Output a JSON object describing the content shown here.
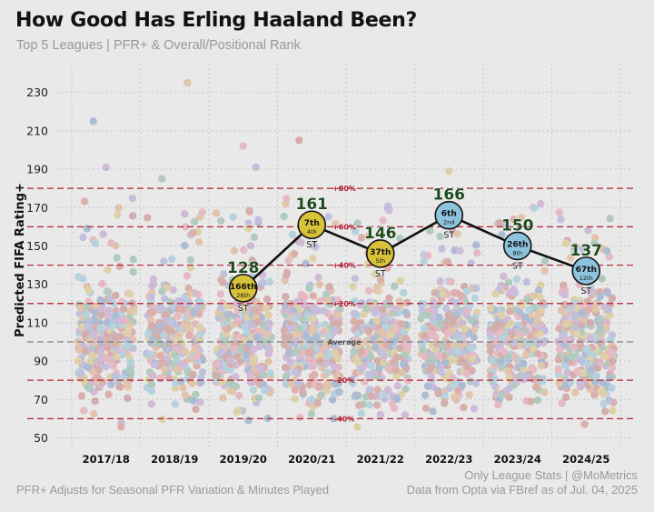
{
  "header": {
    "title": "How Good Has Erling Haaland Been?",
    "subtitle": "Top 5 Leagues | PFR+ & Overall/Positional Rank"
  },
  "footer": {
    "note": "PFR+ Adjusts for Seasonal PFR Variation & Minutes Played",
    "credit": "Only League Stats | @MoMetrics",
    "source": "Data from Opta via FBref as of Jul. 04, 2025"
  },
  "colors": {
    "background": "#e9e9e9",
    "reference_line": "#b22234",
    "average_line": "#777777",
    "player_line": "#111111",
    "label_green": "#1f4a1f",
    "gold_marker": "#d8c23a",
    "blue_marker": "#8ec3de"
  },
  "chart_data": {
    "type": "scatter",
    "title": "How Good Has Erling Haaland Been?",
    "xlabel": "",
    "ylabel": "Predicted FIFA Rating+",
    "categories": [
      "2017/18",
      "2018/19",
      "2019/20",
      "2020/21",
      "2021/22",
      "2022/23",
      "2023/24",
      "2024/25"
    ],
    "ylim": [
      45,
      245
    ],
    "yticks": [
      50,
      70,
      90,
      110,
      130,
      150,
      170,
      190,
      210,
      230
    ],
    "grid": true,
    "reference_lines": [
      {
        "value": 180,
        "label": "+80%"
      },
      {
        "value": 160,
        "label": "+60%"
      },
      {
        "value": 140,
        "label": "+40%"
      },
      {
        "value": 120,
        "label": "+20%"
      },
      {
        "value": 100,
        "label": "Average"
      },
      {
        "value": 80,
        "label": "-20%"
      },
      {
        "value": 60,
        "label": "-40%"
      }
    ],
    "highlight_series": {
      "name": "Erling Haaland",
      "points": [
        {
          "season": "2019/20",
          "pfr": 128,
          "overall_rank": "166th",
          "position_rank": "28th",
          "position": "ST",
          "marker": "gold"
        },
        {
          "season": "2020/21",
          "pfr": 161,
          "overall_rank": "7th",
          "position_rank": "4th",
          "position": "ST",
          "marker": "gold"
        },
        {
          "season": "2021/22",
          "pfr": 146,
          "overall_rank": "37th",
          "position_rank": "5th",
          "position": "ST",
          "marker": "gold"
        },
        {
          "season": "2022/23",
          "pfr": 166,
          "overall_rank": "6th",
          "position_rank": "2nd",
          "position": "ST",
          "marker": "blue"
        },
        {
          "season": "2023/24",
          "pfr": 150,
          "overall_rank": "26th",
          "position_rank": "8th",
          "position": "ST",
          "marker": "blue"
        },
        {
          "season": "2024/25",
          "pfr": 137,
          "overall_rank": "67th",
          "position_rank": "12th",
          "position": "ST",
          "marker": "blue"
        }
      ]
    },
    "background_players": {
      "description": "All Top 5 league players per season (jittered)",
      "typical_range": [
        60,
        180
      ],
      "outliers": [
        {
          "season": "2017/18",
          "pfr": 215
        },
        {
          "season": "2017/18",
          "pfr": 191
        },
        {
          "season": "2018/19",
          "pfr": 235
        },
        {
          "season": "2018/19",
          "pfr": 185
        },
        {
          "season": "2019/20",
          "pfr": 202
        },
        {
          "season": "2019/20",
          "pfr": 191
        },
        {
          "season": "2020/21",
          "pfr": 205
        },
        {
          "season": "2022/23",
          "pfr": 189
        }
      ]
    }
  }
}
